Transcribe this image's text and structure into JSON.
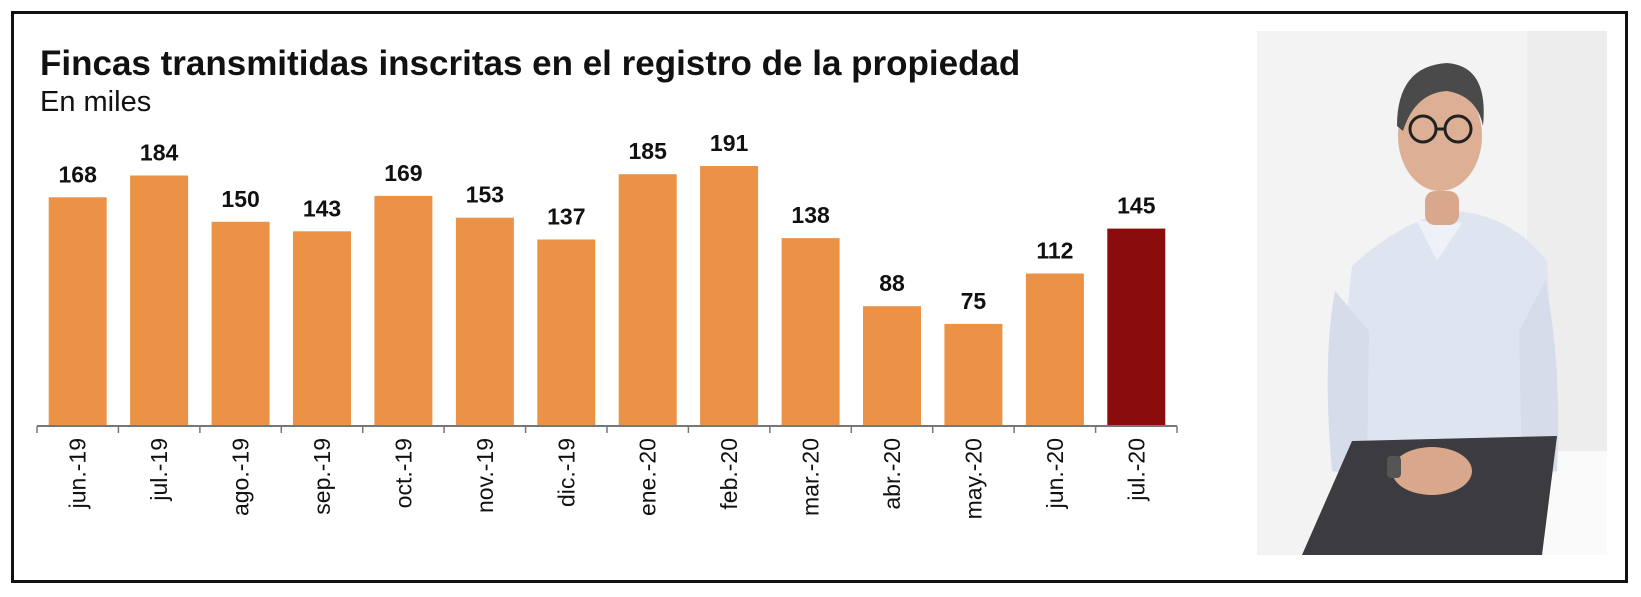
{
  "colors": {
    "bar": "#ec9247",
    "bar_highlight": "#8b0c0c",
    "text": "#111111",
    "axis": "#777777"
  },
  "chart_data": {
    "type": "bar",
    "title": "Fincas transmitidas inscritas en el registro de la propiedad",
    "subtitle": "En miles",
    "categories": [
      "jun.-19",
      "jul.-19",
      "ago.-19",
      "sep.-19",
      "oct.-19",
      "nov.-19",
      "dic.-19",
      "ene.-20",
      "feb.-20",
      "mar.-20",
      "abr.-20",
      "may.-20",
      "jun.-20",
      "jul.-20"
    ],
    "values": [
      168,
      184,
      150,
      143,
      169,
      153,
      137,
      185,
      191,
      138,
      88,
      75,
      112,
      145
    ],
    "highlight_index": 13,
    "ylim": [
      0,
      191
    ],
    "data_labels": true,
    "grid": false,
    "legend": "none"
  },
  "photo": {
    "icon": "person-portrait-photo"
  }
}
